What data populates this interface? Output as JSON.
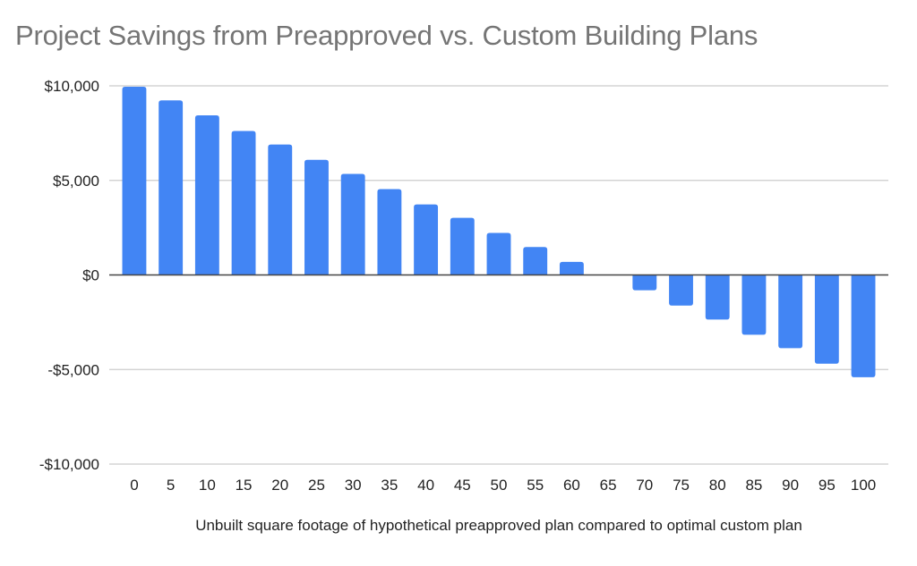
{
  "chart_data": {
    "type": "bar",
    "title": "Project Savings from Preapproved vs. Custom Building Plans",
    "xlabel": "Unbuilt square footage of hypothetical preapproved plan compared to optimal custom plan",
    "ylabel": "",
    "categories": [
      "0",
      "5",
      "10",
      "15",
      "20",
      "25",
      "30",
      "35",
      "40",
      "45",
      "50",
      "55",
      "60",
      "65",
      "70",
      "75",
      "80",
      "85",
      "90",
      "95",
      "100"
    ],
    "values": [
      9950,
      9230,
      8440,
      7610,
      6900,
      6090,
      5340,
      4540,
      3730,
      3020,
      2220,
      1480,
      690,
      -40,
      -810,
      -1620,
      -2360,
      -3160,
      -3870,
      -4690,
      -5410
    ],
    "ylim": [
      -10000,
      10000
    ],
    "y_ticks": [
      10000,
      5000,
      0,
      -5000,
      -10000
    ],
    "y_tick_labels": [
      "$10,000",
      "$5,000",
      "$0",
      "-$5,000",
      "-$10,000"
    ],
    "grid": true,
    "legend": "none",
    "colors": {
      "bar": "#4285F4",
      "title": "#757575",
      "grid": "#cccccc",
      "zero_line": "#444444",
      "text": "#222222"
    }
  }
}
